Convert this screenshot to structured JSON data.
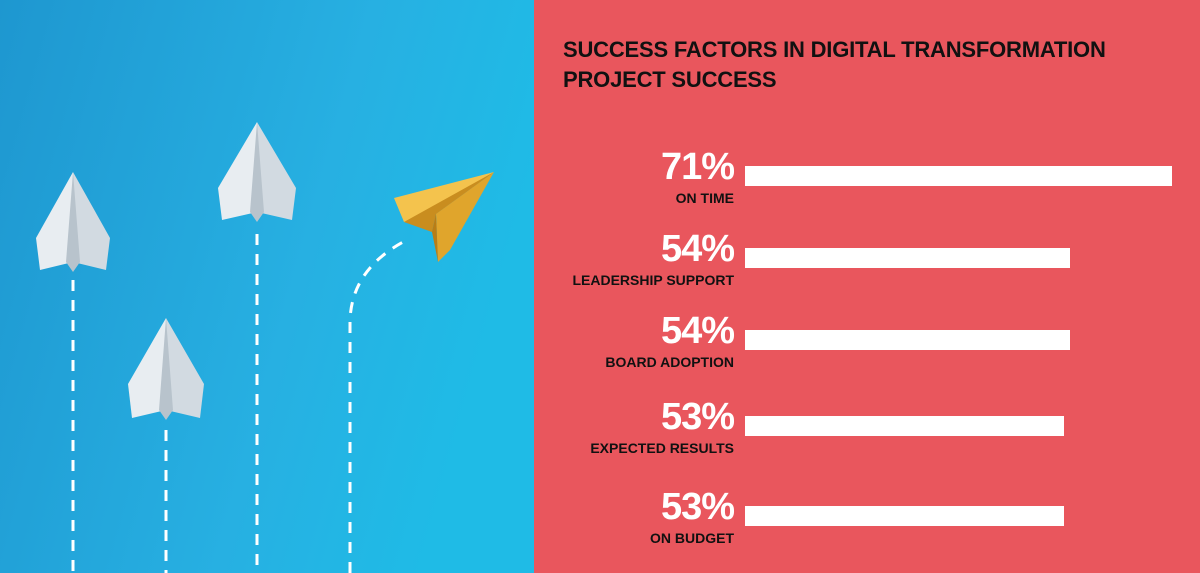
{
  "colors": {
    "left_background": "#29a9dc",
    "right_background": "#e9565d",
    "bar": "#ffffff",
    "value_text": "#ffffff",
    "label_text": "#111111",
    "paper_plane": "#dfe6ec",
    "gold_plane": "#f0b53a"
  },
  "illustration": {
    "icons": [
      "paper-plane-icon",
      "gold-paper-plane-icon"
    ]
  },
  "chart_data": {
    "type": "bar",
    "orientation": "horizontal",
    "title": "SUCCESS FACTORS IN DIGITAL TRANSFORMATION PROJECT SUCCESS",
    "categories": [
      "ON TIME",
      "LEADERSHIP SUPPORT",
      "BOARD ADOPTION",
      "EXPECTED RESULTS",
      "ON BUDGET"
    ],
    "values": [
      71,
      54,
      54,
      53,
      53
    ],
    "value_labels": [
      "71%",
      "54%",
      "54%",
      "53%",
      "53%"
    ],
    "xlim": [
      0,
      71
    ],
    "grid": false,
    "legend": "none"
  }
}
